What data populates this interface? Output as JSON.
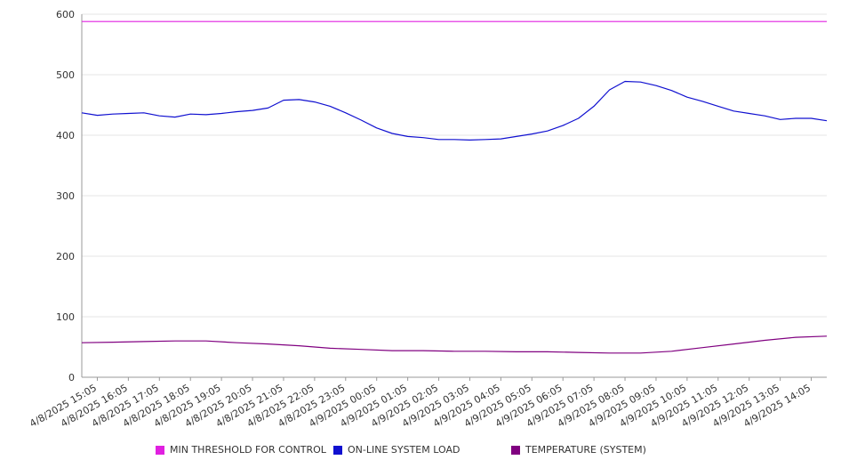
{
  "colors": {
    "threshold": "#e020e0",
    "load": "#1010d0",
    "temperature": "#800080",
    "grid": "#e6e6e6",
    "axis": "#999999",
    "text": "#333333"
  },
  "legend": [
    {
      "key": "threshold",
      "label": "MIN THRESHOLD FOR CONTROL"
    },
    {
      "key": "load",
      "label": "ON-LINE SYSTEM LOAD"
    },
    {
      "key": "temperature",
      "label": "TEMPERATURE (SYSTEM)"
    }
  ],
  "chart_data": {
    "type": "line",
    "legend_position": "bottom",
    "grid": true,
    "ylim": [
      0,
      600
    ],
    "yticks": [
      0,
      100,
      200,
      300,
      400,
      500,
      600
    ],
    "x_ticks": [
      "4/8/2025 15:05",
      "4/8/2025 16:05",
      "4/8/2025 17:05",
      "4/8/2025 18:05",
      "4/8/2025 19:05",
      "4/8/2025 20:05",
      "4/8/2025 21:05",
      "4/8/2025 22:05",
      "4/8/2025 23:05",
      "4/9/2025 00:05",
      "4/9/2025 01:05",
      "4/9/2025 02:05",
      "4/9/2025 03:05",
      "4/9/2025 04:05",
      "4/9/2025 05:05",
      "4/9/2025 06:05",
      "4/9/2025 07:05",
      "4/9/2025 08:05",
      "4/9/2025 09:05",
      "4/9/2025 10:05",
      "4/9/2025 11:05",
      "4/9/2025 12:05",
      "4/9/2025 13:05",
      "4/9/2025 14:05"
    ],
    "x_range": [
      "4/8/2025 14:35",
      "4/9/2025 14:35"
    ],
    "series": [
      {
        "name": "MIN THRESHOLD FOR CONTROL",
        "color_key": "threshold",
        "points": [
          [
            "4/8/2025 14:35",
            588
          ],
          [
            "4/9/2025 14:35",
            588
          ]
        ]
      },
      {
        "name": "ON-LINE SYSTEM LOAD",
        "color_key": "load",
        "points": [
          [
            "4/8/2025 14:35",
            437
          ],
          [
            "4/8/2025 15:05",
            433
          ],
          [
            "4/8/2025 15:35",
            435
          ],
          [
            "4/8/2025 16:05",
            436
          ],
          [
            "4/8/2025 16:35",
            437
          ],
          [
            "4/8/2025 17:05",
            432
          ],
          [
            "4/8/2025 17:35",
            430
          ],
          [
            "4/8/2025 18:05",
            435
          ],
          [
            "4/8/2025 18:35",
            434
          ],
          [
            "4/8/2025 19:05",
            436
          ],
          [
            "4/8/2025 19:35",
            439
          ],
          [
            "4/8/2025 20:05",
            441
          ],
          [
            "4/8/2025 20:35",
            445
          ],
          [
            "4/8/2025 21:05",
            458
          ],
          [
            "4/8/2025 21:35",
            459
          ],
          [
            "4/8/2025 22:05",
            455
          ],
          [
            "4/8/2025 22:35",
            448
          ],
          [
            "4/8/2025 23:05",
            437
          ],
          [
            "4/8/2025 23:35",
            425
          ],
          [
            "4/9/2025 00:05",
            412
          ],
          [
            "4/9/2025 00:35",
            403
          ],
          [
            "4/9/2025 01:05",
            398
          ],
          [
            "4/9/2025 01:35",
            396
          ],
          [
            "4/9/2025 02:05",
            393
          ],
          [
            "4/9/2025 02:35",
            393
          ],
          [
            "4/9/2025 03:05",
            392
          ],
          [
            "4/9/2025 03:35",
            393
          ],
          [
            "4/9/2025 04:05",
            394
          ],
          [
            "4/9/2025 04:35",
            398
          ],
          [
            "4/9/2025 05:05",
            402
          ],
          [
            "4/9/2025 05:35",
            407
          ],
          [
            "4/9/2025 06:05",
            416
          ],
          [
            "4/9/2025 06:35",
            428
          ],
          [
            "4/9/2025 07:05",
            448
          ],
          [
            "4/9/2025 07:35",
            475
          ],
          [
            "4/9/2025 08:05",
            489
          ],
          [
            "4/9/2025 08:35",
            488
          ],
          [
            "4/9/2025 09:05",
            482
          ],
          [
            "4/9/2025 09:35",
            474
          ],
          [
            "4/9/2025 10:05",
            463
          ],
          [
            "4/9/2025 10:35",
            456
          ],
          [
            "4/9/2025 11:05",
            448
          ],
          [
            "4/9/2025 11:35",
            440
          ],
          [
            "4/9/2025 12:05",
            436
          ],
          [
            "4/9/2025 12:35",
            432
          ],
          [
            "4/9/2025 13:05",
            426
          ],
          [
            "4/9/2025 13:35",
            428
          ],
          [
            "4/9/2025 14:05",
            428
          ],
          [
            "4/9/2025 14:35",
            424
          ]
        ]
      },
      {
        "name": "TEMPERATURE (SYSTEM)",
        "color_key": "temperature",
        "points": [
          [
            "4/8/2025 14:35",
            57
          ],
          [
            "4/8/2025 15:35",
            58
          ],
          [
            "4/8/2025 16:35",
            59
          ],
          [
            "4/8/2025 17:35",
            60
          ],
          [
            "4/8/2025 18:35",
            60
          ],
          [
            "4/8/2025 19:35",
            57
          ],
          [
            "4/8/2025 20:35",
            55
          ],
          [
            "4/8/2025 21:35",
            52
          ],
          [
            "4/8/2025 22:35",
            48
          ],
          [
            "4/8/2025 23:35",
            46
          ],
          [
            "4/9/2025 00:35",
            44
          ],
          [
            "4/9/2025 01:35",
            44
          ],
          [
            "4/9/2025 02:35",
            43
          ],
          [
            "4/9/2025 03:35",
            43
          ],
          [
            "4/9/2025 04:35",
            42
          ],
          [
            "4/9/2025 05:35",
            42
          ],
          [
            "4/9/2025 06:35",
            41
          ],
          [
            "4/9/2025 07:35",
            40
          ],
          [
            "4/9/2025 08:35",
            40
          ],
          [
            "4/9/2025 09:35",
            43
          ],
          [
            "4/9/2025 10:35",
            49
          ],
          [
            "4/9/2025 11:35",
            55
          ],
          [
            "4/9/2025 12:35",
            61
          ],
          [
            "4/9/2025 13:35",
            66
          ],
          [
            "4/9/2025 14:35",
            68
          ]
        ]
      }
    ]
  }
}
